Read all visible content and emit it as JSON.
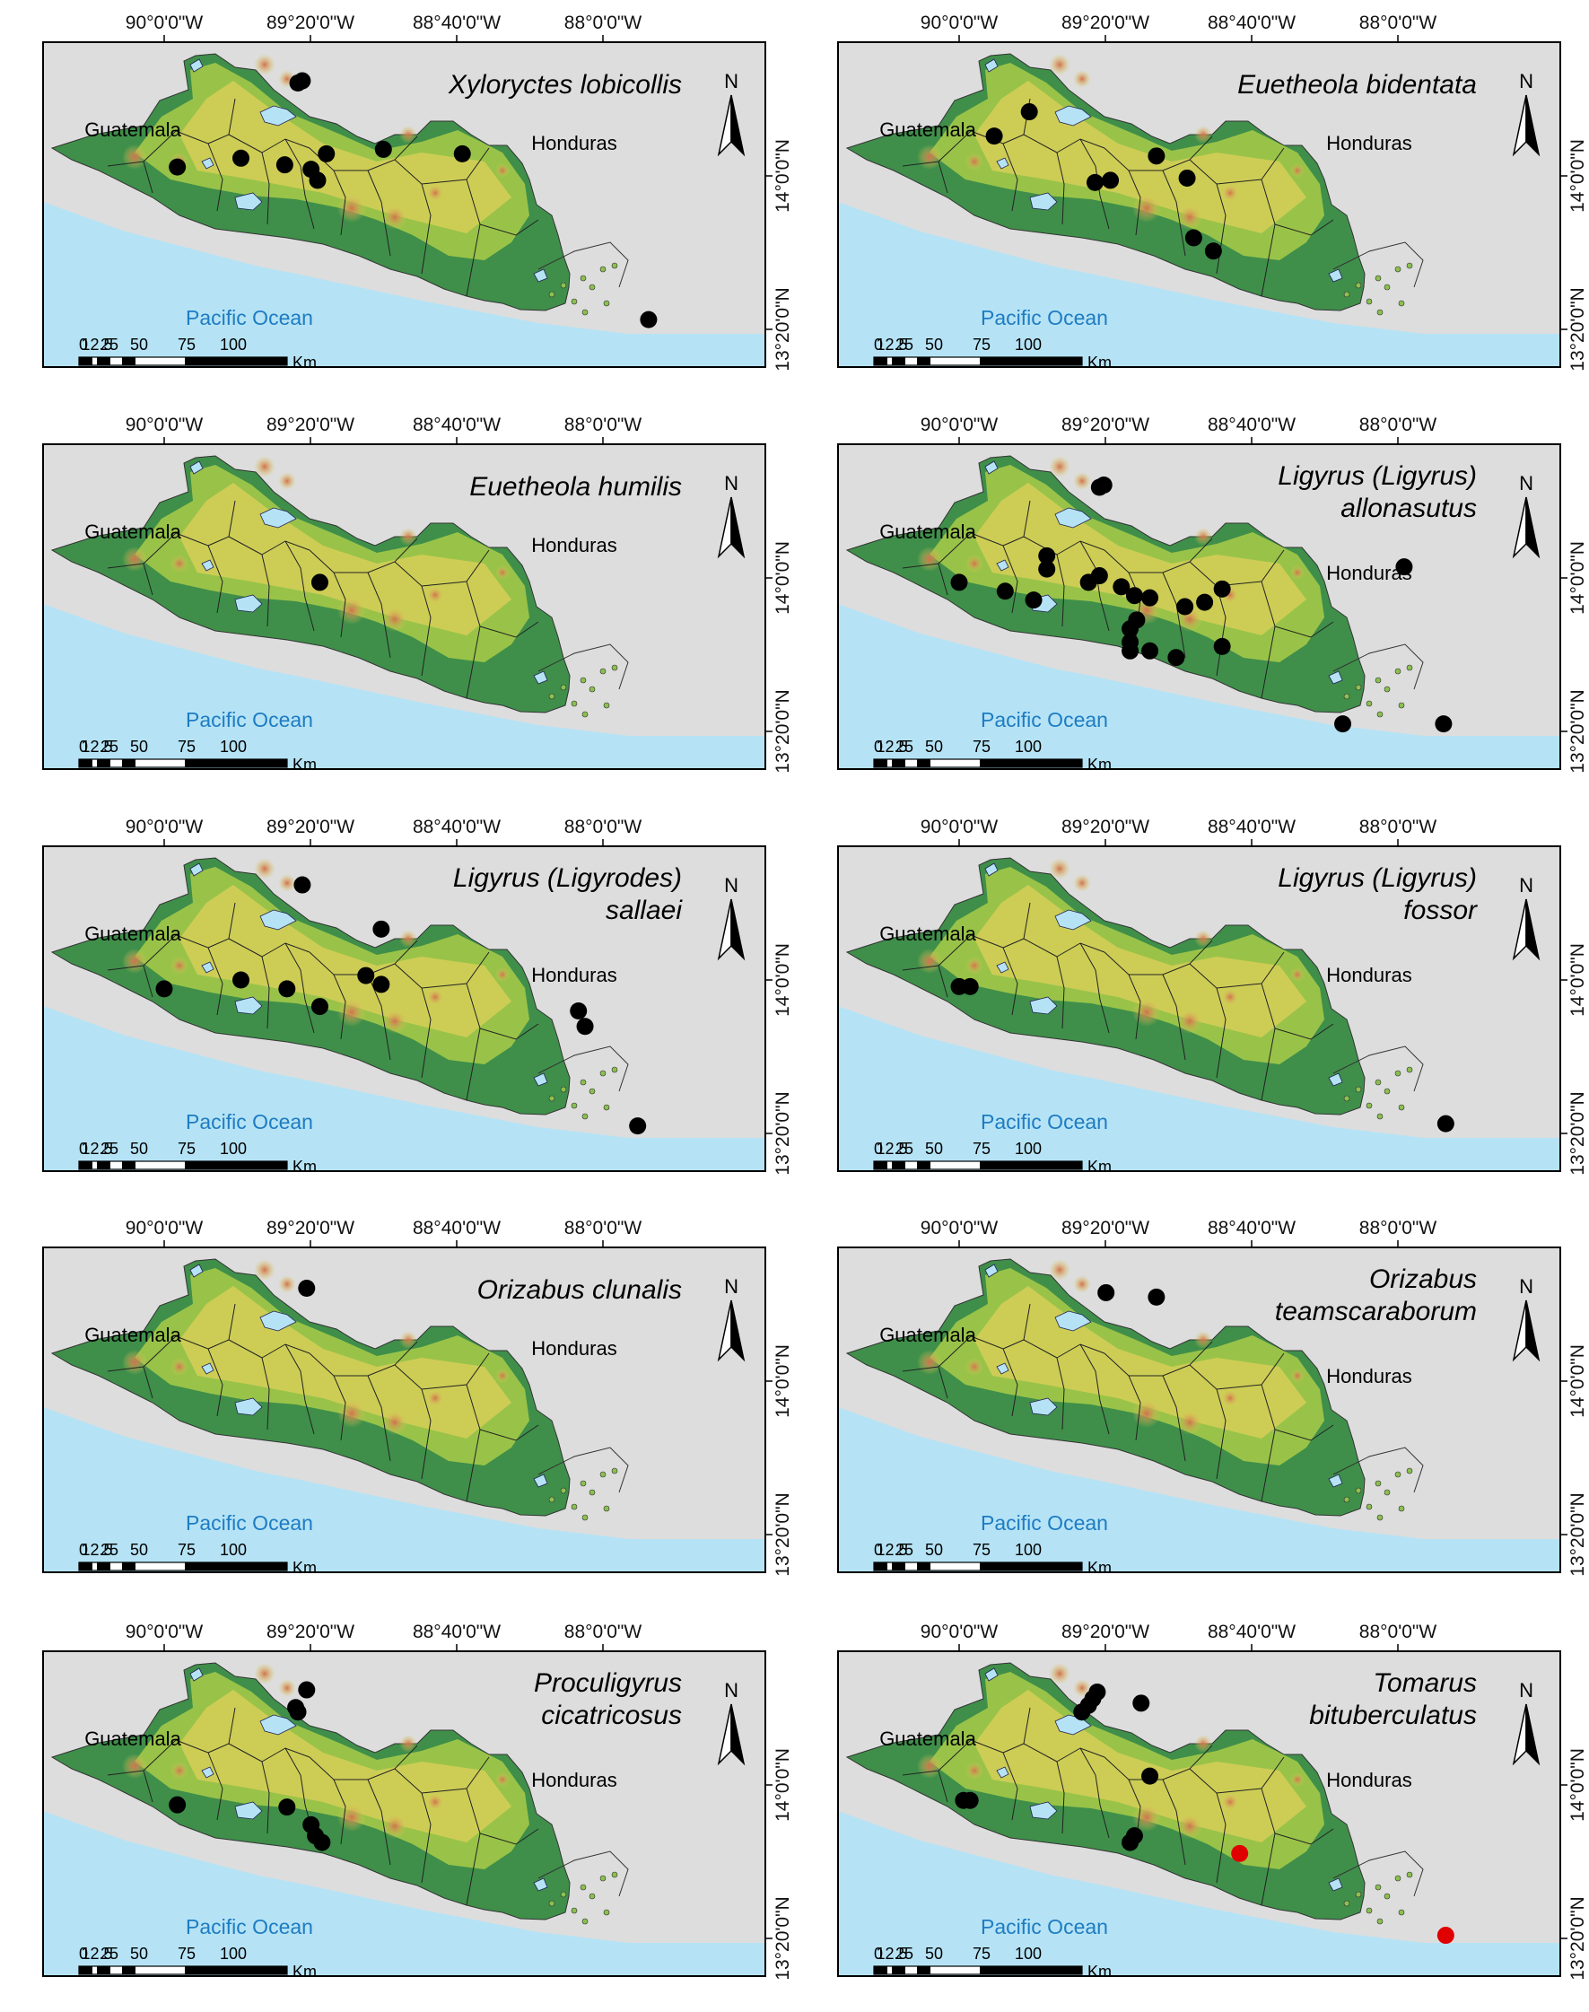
{
  "lon_labels": [
    "90°0'0\"W",
    "89°20'0\"W",
    "88°40'0\"W",
    "88°0'0\"W"
  ],
  "lat_labels": [
    "14°0'0\"N",
    "13°20'0\"N"
  ],
  "ocean_label": "Pacific Ocean",
  "country_labels": {
    "west": "Guatemala",
    "east": "Honduras"
  },
  "north_arrow": "N",
  "scale_bar": {
    "ticks": [
      "0",
      "12.5",
      "25",
      "50",
      "75",
      "100"
    ],
    "unit": "Km"
  },
  "colors": {
    "ocean": "#b5e3f5",
    "land": "#9ec648",
    "land_high": "#d9d05a",
    "coast": "#3f8f4a",
    "peak": "#d2724e",
    "border": "#222222",
    "records": "#000000",
    "new_record": "#e00000",
    "outside": "#dddddd"
  },
  "panels": [
    {
      "species": [
        "Xyloryctes lobicollis"
      ],
      "records": [
        [
          89.39,
          14.42
        ],
        [
          89.37,
          14.43
        ],
        [
          89.65,
          14.08
        ],
        [
          89.94,
          14.04
        ],
        [
          89.45,
          14.05
        ],
        [
          89.26,
          14.1
        ],
        [
          89.3,
          13.98
        ],
        [
          89.33,
          14.03
        ],
        [
          89.0,
          14.12
        ],
        [
          88.64,
          14.1
        ],
        [
          87.79,
          13.35
        ]
      ]
    },
    {
      "species": [
        "Euetheola bidentata"
      ],
      "records": [
        [
          89.68,
          14.29
        ],
        [
          89.84,
          14.18
        ],
        [
          89.1,
          14.09
        ],
        [
          89.38,
          13.97
        ],
        [
          89.31,
          13.98
        ],
        [
          88.96,
          13.99
        ],
        [
          88.93,
          13.72
        ],
        [
          88.84,
          13.66
        ]
      ]
    },
    {
      "species": [
        "Euetheola humilis"
      ],
      "records": [
        [
          89.29,
          13.98
        ]
      ]
    },
    {
      "species": [
        "Ligyrus (Ligyrus)",
        "allonasutus"
      ],
      "records": [
        [
          89.34,
          14.42
        ],
        [
          89.36,
          14.41
        ],
        [
          89.6,
          14.1
        ],
        [
          89.6,
          14.04
        ],
        [
          90.0,
          13.98
        ],
        [
          89.79,
          13.94
        ],
        [
          89.66,
          13.9
        ],
        [
          89.41,
          13.98
        ],
        [
          89.36,
          14.01
        ],
        [
          89.26,
          13.96
        ],
        [
          89.2,
          13.92
        ],
        [
          89.13,
          13.91
        ],
        [
          89.19,
          13.81
        ],
        [
          88.97,
          13.87
        ],
        [
          88.88,
          13.89
        ],
        [
          88.8,
          13.95
        ],
        [
          89.22,
          13.77
        ],
        [
          89.22,
          13.71
        ],
        [
          89.22,
          13.67
        ],
        [
          89.13,
          13.67
        ],
        [
          89.01,
          13.64
        ],
        [
          88.8,
          13.69
        ],
        [
          88.25,
          13.34
        ],
        [
          87.79,
          13.34
        ],
        [
          87.97,
          14.05
        ]
      ]
    },
    {
      "species": [
        "Ligyrus (Ligyrodes)",
        "sallaei"
      ],
      "records": [
        [
          89.37,
          14.43
        ],
        [
          89.01,
          14.23
        ],
        [
          90.0,
          13.96
        ],
        [
          89.65,
          14.0
        ],
        [
          89.44,
          13.96
        ],
        [
          89.29,
          13.88
        ],
        [
          89.08,
          14.02
        ],
        [
          89.01,
          13.98
        ],
        [
          88.11,
          13.86
        ],
        [
          88.08,
          13.79
        ],
        [
          87.84,
          13.34
        ]
      ]
    },
    {
      "species": [
        "Ligyrus (Ligyrus)",
        "fossor"
      ],
      "records": [
        [
          90.0,
          13.97
        ],
        [
          89.95,
          13.97
        ],
        [
          87.78,
          13.35
        ]
      ]
    },
    {
      "species": [
        "Orizabus clunalis"
      ],
      "records": [
        [
          89.35,
          14.42
        ]
      ]
    },
    {
      "species": [
        "Orizabus",
        "teamscaraborum"
      ],
      "records": [
        [
          89.33,
          14.4
        ],
        [
          89.1,
          14.38
        ]
      ]
    },
    {
      "species": [
        "Proculigyrus",
        "cicatricosus"
      ],
      "records": [
        [
          89.35,
          14.43
        ],
        [
          89.4,
          14.35
        ],
        [
          89.39,
          14.33
        ],
        [
          89.94,
          13.91
        ],
        [
          89.44,
          13.9
        ],
        [
          89.33,
          13.82
        ],
        [
          89.31,
          13.77
        ],
        [
          89.28,
          13.74
        ]
      ]
    },
    {
      "species": [
        "Tomarus",
        "bituberculatus"
      ],
      "records": [
        [
          89.37,
          14.42
        ],
        [
          89.39,
          14.39
        ],
        [
          89.41,
          14.36
        ],
        [
          89.44,
          14.33
        ],
        [
          89.17,
          14.37
        ],
        [
          89.13,
          14.04
        ],
        [
          89.98,
          13.93
        ],
        [
          89.95,
          13.93
        ],
        [
          89.2,
          13.77
        ],
        [
          89.22,
          13.74
        ]
      ],
      "new_records": [
        [
          88.72,
          13.69
        ],
        [
          87.78,
          13.32
        ]
      ]
    }
  ]
}
